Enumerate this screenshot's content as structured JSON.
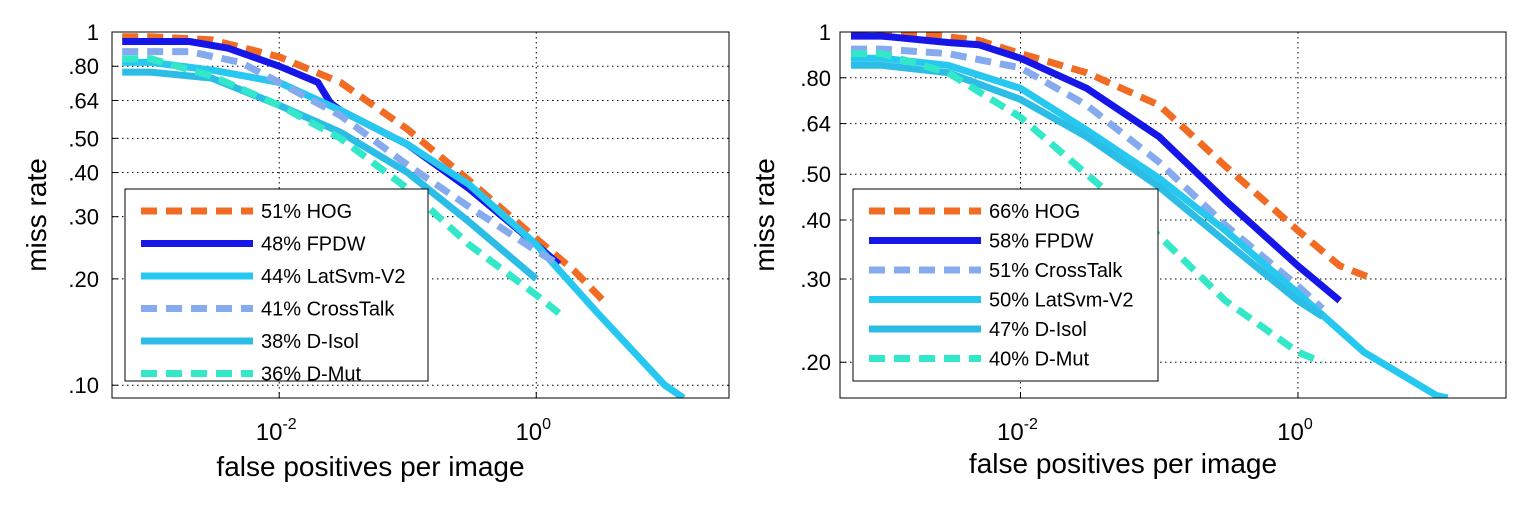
{
  "chart_data": [
    {
      "type": "line",
      "title": "",
      "xlabel": "false positives per image",
      "ylabel": "miss rate",
      "xscale": "log",
      "yscale": "log",
      "xlim": [
        0.0005,
        31.6
      ],
      "ylim": [
        0.092,
        1.0
      ],
      "grid": true,
      "legend_placement": "bottom-left",
      "x_ticks": [
        {
          "value": 0.01,
          "base": "10",
          "exp": "-2"
        },
        {
          "value": 1,
          "base": "10",
          "exp": "0"
        }
      ],
      "y_ticks": [
        {
          "value": 1.0,
          "label": "1"
        },
        {
          "value": 0.8,
          "label": ".80"
        },
        {
          "value": 0.64,
          "label": ".64"
        },
        {
          "value": 0.5,
          "label": ".50"
        },
        {
          "value": 0.4,
          "label": ".40"
        },
        {
          "value": 0.3,
          "label": ".30"
        },
        {
          "value": 0.2,
          "label": ".20"
        },
        {
          "value": 0.1,
          "label": ".10"
        }
      ],
      "series": [
        {
          "name": "51% HOG",
          "color": "#f26b22",
          "dashed": true,
          "x": [
            0.0006,
            0.001,
            0.003,
            0.01,
            0.03,
            0.1,
            0.3,
            1,
            2,
            3.5
          ],
          "y": [
            0.97,
            0.97,
            0.95,
            0.85,
            0.72,
            0.53,
            0.38,
            0.26,
            0.21,
            0.17
          ]
        },
        {
          "name": "48% FPDW",
          "color": "#1616e8",
          "dashed": false,
          "x": [
            0.0006,
            0.002,
            0.004,
            0.01,
            0.02,
            0.025,
            0.03,
            0.1,
            0.3,
            1,
            1.5
          ],
          "y": [
            0.94,
            0.94,
            0.9,
            0.8,
            0.72,
            0.63,
            0.6,
            0.48,
            0.36,
            0.25,
            0.22
          ]
        },
        {
          "name": "44% LatSvm-V2",
          "color": "#27c8f0",
          "dashed": false,
          "x": [
            0.0006,
            0.001,
            0.003,
            0.01,
            0.03,
            0.1,
            0.3,
            1,
            3,
            10,
            14
          ],
          "y": [
            0.82,
            0.82,
            0.78,
            0.72,
            0.6,
            0.48,
            0.37,
            0.25,
            0.16,
            0.1,
            0.092
          ]
        },
        {
          "name": "41% CrossTalk",
          "color": "#85abee",
          "dashed": true,
          "x": [
            0.0006,
            0.002,
            0.005,
            0.01,
            0.03,
            0.1,
            0.3,
            1,
            1.5
          ],
          "y": [
            0.88,
            0.88,
            0.82,
            0.72,
            0.58,
            0.42,
            0.32,
            0.24,
            0.22
          ]
        },
        {
          "name": "38% D-Isol",
          "color": "#2cbde6",
          "dashed": false,
          "x": [
            0.0006,
            0.001,
            0.003,
            0.01,
            0.03,
            0.1,
            0.3,
            1
          ],
          "y": [
            0.77,
            0.77,
            0.74,
            0.62,
            0.52,
            0.4,
            0.29,
            0.2
          ]
        },
        {
          "name": "36% D-Mut",
          "color": "#33e8c8",
          "dashed": true,
          "x": [
            0.0006,
            0.001,
            0.003,
            0.01,
            0.03,
            0.1,
            0.3,
            1,
            1.5
          ],
          "y": [
            0.84,
            0.84,
            0.75,
            0.62,
            0.5,
            0.36,
            0.25,
            0.18,
            0.16
          ]
        }
      ]
    },
    {
      "type": "line",
      "title": "",
      "xlabel": "false positives per image",
      "ylabel": "miss rate",
      "xscale": "log",
      "yscale": "log",
      "xlim": [
        0.0005,
        31.6
      ],
      "ylim": [
        0.168,
        1.0
      ],
      "grid": true,
      "legend_placement": "bottom-left",
      "x_ticks": [
        {
          "value": 0.01,
          "base": "10",
          "exp": "-2"
        },
        {
          "value": 1,
          "base": "10",
          "exp": "0"
        }
      ],
      "y_ticks": [
        {
          "value": 1.0,
          "label": "1"
        },
        {
          "value": 0.8,
          "label": ".80"
        },
        {
          "value": 0.64,
          "label": ".64"
        },
        {
          "value": 0.5,
          "label": ".50"
        },
        {
          "value": 0.4,
          "label": ".40"
        },
        {
          "value": 0.3,
          "label": ".30"
        },
        {
          "value": 0.2,
          "label": ".20"
        }
      ],
      "series": [
        {
          "name": "66% HOG",
          "color": "#f26b22",
          "dashed": true,
          "x": [
            0.0006,
            0.002,
            0.005,
            0.01,
            0.03,
            0.1,
            0.3,
            1,
            2,
            3.5
          ],
          "y": [
            0.99,
            0.99,
            0.96,
            0.9,
            0.82,
            0.7,
            0.52,
            0.38,
            0.32,
            0.3
          ]
        },
        {
          "name": "58% FPDW",
          "color": "#1616e8",
          "dashed": false,
          "x": [
            0.0006,
            0.001,
            0.003,
            0.005,
            0.01,
            0.03,
            0.1,
            0.3,
            1,
            2
          ],
          "y": [
            0.98,
            0.98,
            0.95,
            0.94,
            0.88,
            0.76,
            0.6,
            0.44,
            0.32,
            0.27
          ]
        },
        {
          "name": "51% CrossTalk",
          "color": "#85abee",
          "dashed": true,
          "x": [
            0.0006,
            0.001,
            0.003,
            0.01,
            0.03,
            0.1,
            0.3,
            1,
            1.5
          ],
          "y": [
            0.92,
            0.92,
            0.9,
            0.84,
            0.7,
            0.53,
            0.39,
            0.29,
            0.26
          ]
        },
        {
          "name": "50% LatSvm-V2",
          "color": "#27c8f0",
          "dashed": false,
          "x": [
            0.0006,
            0.001,
            0.003,
            0.01,
            0.03,
            0.1,
            0.3,
            1,
            3,
            10,
            12
          ],
          "y": [
            0.88,
            0.88,
            0.85,
            0.76,
            0.62,
            0.49,
            0.38,
            0.28,
            0.21,
            0.17,
            0.168
          ]
        },
        {
          "name": "47% D-Isol",
          "color": "#2cbde6",
          "dashed": false,
          "x": [
            0.0006,
            0.001,
            0.003,
            0.01,
            0.03,
            0.1,
            0.3,
            1,
            1.5
          ],
          "y": [
            0.85,
            0.85,
            0.82,
            0.72,
            0.6,
            0.47,
            0.36,
            0.27,
            0.25
          ]
        },
        {
          "name": "40% D-Mut",
          "color": "#33e8c8",
          "dashed": true,
          "x": [
            0.0006,
            0.001,
            0.003,
            0.01,
            0.03,
            0.1,
            0.3,
            1,
            1.5
          ],
          "y": [
            0.9,
            0.9,
            0.82,
            0.66,
            0.5,
            0.37,
            0.27,
            0.21,
            0.2
          ]
        }
      ]
    }
  ]
}
